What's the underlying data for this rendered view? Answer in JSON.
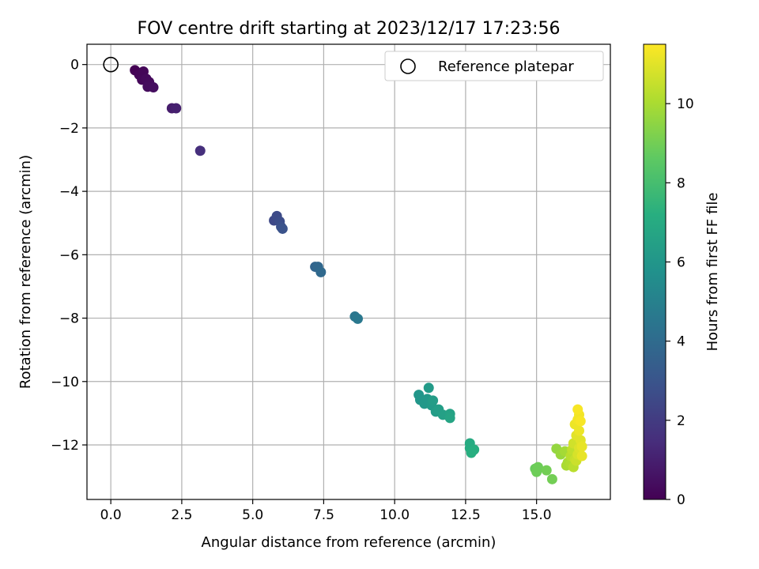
{
  "chart_data": {
    "type": "scatter",
    "title": "FOV centre drift starting at 2023/12/17 17:23:56",
    "xlabel": "Angular distance from reference (arcmin)",
    "ylabel": "Rotation from reference (arcmin)",
    "xlim": [
      -0.84,
      17.6
    ],
    "ylim": [
      -13.72,
      0.64
    ],
    "xticks": [
      0.0,
      2.5,
      5.0,
      7.5,
      10.0,
      12.5,
      15.0
    ],
    "xtick_labels": [
      "0.0",
      "2.5",
      "5.0",
      "7.5",
      "10.0",
      "12.5",
      "15.0"
    ],
    "yticks": [
      0,
      -2,
      -4,
      -6,
      -8,
      -10,
      -12
    ],
    "ytick_labels": [
      "0",
      "−2",
      "−4",
      "−6",
      "−8",
      "−10",
      "−12"
    ],
    "grid": true,
    "legend": {
      "placement": "top-right",
      "entries": [
        "Reference platepar"
      ]
    },
    "reference_point": {
      "x": 0.0,
      "y": 0.0,
      "label": "Reference platepar"
    },
    "colorbar": {
      "label": "Hours from first FF file",
      "range": [
        0,
        11.5
      ],
      "ticks": [
        0,
        2,
        4,
        6,
        8,
        10
      ],
      "tick_labels": [
        "0",
        "2",
        "4",
        "6",
        "8",
        "10"
      ],
      "colormap": "viridis"
    },
    "points": [
      {
        "x": 0.85,
        "y": -0.18,
        "t": 0.0
      },
      {
        "x": 1.0,
        "y": -0.32,
        "t": 0.1
      },
      {
        "x": 1.15,
        "y": -0.22,
        "t": 0.15
      },
      {
        "x": 1.1,
        "y": -0.48,
        "t": 0.2
      },
      {
        "x": 1.25,
        "y": -0.45,
        "t": 0.25
      },
      {
        "x": 1.35,
        "y": -0.55,
        "t": 0.3
      },
      {
        "x": 1.3,
        "y": -0.7,
        "t": 0.35
      },
      {
        "x": 1.5,
        "y": -0.72,
        "t": 0.4
      },
      {
        "x": 2.15,
        "y": -1.38,
        "t": 0.9
      },
      {
        "x": 2.3,
        "y": -1.38,
        "t": 1.0
      },
      {
        "x": 3.15,
        "y": -2.72,
        "t": 1.5
      },
      {
        "x": 5.75,
        "y": -4.92,
        "t": 2.5
      },
      {
        "x": 5.85,
        "y": -4.78,
        "t": 2.6
      },
      {
        "x": 5.95,
        "y": -4.95,
        "t": 2.7
      },
      {
        "x": 6.0,
        "y": -5.12,
        "t": 2.8
      },
      {
        "x": 6.05,
        "y": -5.18,
        "t": 2.9
      },
      {
        "x": 7.2,
        "y": -6.38,
        "t": 3.7
      },
      {
        "x": 7.3,
        "y": -6.38,
        "t": 3.8
      },
      {
        "x": 7.4,
        "y": -6.55,
        "t": 3.9
      },
      {
        "x": 8.6,
        "y": -7.95,
        "t": 4.5
      },
      {
        "x": 8.7,
        "y": -8.02,
        "t": 4.6
      },
      {
        "x": 10.85,
        "y": -10.42,
        "t": 6.0
      },
      {
        "x": 10.9,
        "y": -10.58,
        "t": 6.0
      },
      {
        "x": 11.05,
        "y": -10.7,
        "t": 6.1
      },
      {
        "x": 11.15,
        "y": -10.55,
        "t": 6.1
      },
      {
        "x": 11.2,
        "y": -10.2,
        "t": 6.2
      },
      {
        "x": 11.3,
        "y": -10.75,
        "t": 6.2
      },
      {
        "x": 11.35,
        "y": -10.6,
        "t": 6.3
      },
      {
        "x": 11.45,
        "y": -10.95,
        "t": 6.3
      },
      {
        "x": 11.55,
        "y": -10.88,
        "t": 6.4
      },
      {
        "x": 11.7,
        "y": -11.05,
        "t": 6.5
      },
      {
        "x": 11.95,
        "y": -11.02,
        "t": 6.6
      },
      {
        "x": 11.95,
        "y": -11.15,
        "t": 6.7
      },
      {
        "x": 12.65,
        "y": -11.95,
        "t": 7.0
      },
      {
        "x": 12.65,
        "y": -12.1,
        "t": 7.05
      },
      {
        "x": 12.75,
        "y": -12.18,
        "t": 7.1
      },
      {
        "x": 12.8,
        "y": -12.15,
        "t": 7.15
      },
      {
        "x": 12.7,
        "y": -12.25,
        "t": 7.2
      },
      {
        "x": 14.95,
        "y": -12.75,
        "t": 8.8
      },
      {
        "x": 15.05,
        "y": -12.7,
        "t": 8.9
      },
      {
        "x": 15.0,
        "y": -12.85,
        "t": 8.9
      },
      {
        "x": 15.35,
        "y": -12.8,
        "t": 9.0
      },
      {
        "x": 15.55,
        "y": -13.08,
        "t": 9.0
      },
      {
        "x": 15.7,
        "y": -12.12,
        "t": 9.6
      },
      {
        "x": 15.85,
        "y": -12.3,
        "t": 9.7
      },
      {
        "x": 16.0,
        "y": -12.2,
        "t": 9.9
      },
      {
        "x": 16.1,
        "y": -12.55,
        "t": 10.0
      },
      {
        "x": 16.05,
        "y": -12.65,
        "t": 10.0
      },
      {
        "x": 16.2,
        "y": -12.6,
        "t": 10.1
      },
      {
        "x": 16.2,
        "y": -12.35,
        "t": 10.3
      },
      {
        "x": 16.3,
        "y": -12.7,
        "t": 10.3
      },
      {
        "x": 16.25,
        "y": -12.15,
        "t": 10.4
      },
      {
        "x": 16.35,
        "y": -12.45,
        "t": 10.5
      },
      {
        "x": 16.4,
        "y": -12.5,
        "t": 10.6
      },
      {
        "x": 16.3,
        "y": -11.95,
        "t": 10.7
      },
      {
        "x": 16.45,
        "y": -12.3,
        "t": 10.8
      },
      {
        "x": 16.5,
        "y": -12.1,
        "t": 10.9
      },
      {
        "x": 16.4,
        "y": -11.7,
        "t": 11.0
      },
      {
        "x": 16.55,
        "y": -11.85,
        "t": 11.0
      },
      {
        "x": 16.6,
        "y": -12.35,
        "t": 11.1
      },
      {
        "x": 16.6,
        "y": -12.05,
        "t": 11.1
      },
      {
        "x": 16.35,
        "y": -11.35,
        "t": 11.2
      },
      {
        "x": 16.5,
        "y": -11.55,
        "t": 11.2
      },
      {
        "x": 16.45,
        "y": -11.2,
        "t": 11.3
      },
      {
        "x": 16.5,
        "y": -11.05,
        "t": 11.3
      },
      {
        "x": 16.45,
        "y": -10.88,
        "t": 11.4
      },
      {
        "x": 16.55,
        "y": -11.25,
        "t": 11.4
      }
    ]
  }
}
